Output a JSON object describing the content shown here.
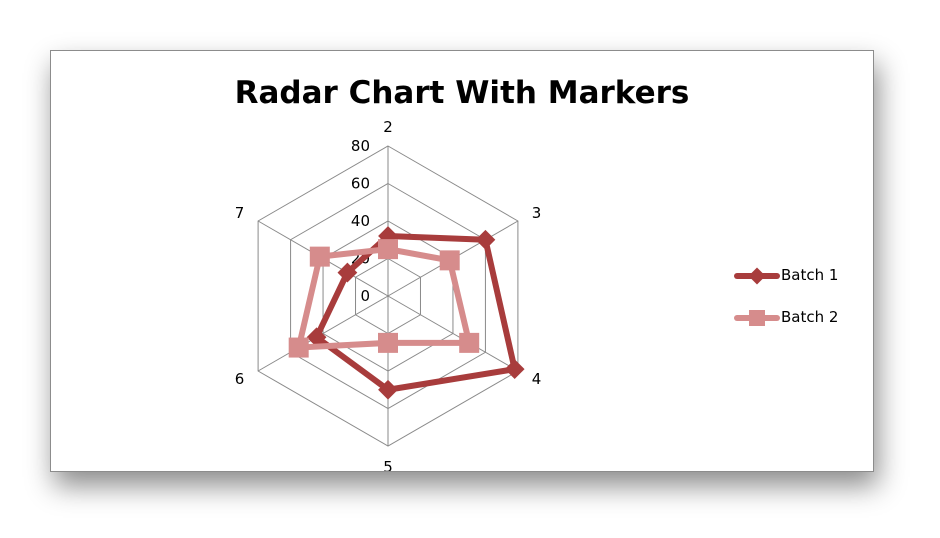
{
  "chart_data": {
    "type": "radar",
    "title": "Radar Chart With Markers",
    "categories": [
      "2",
      "3",
      "4",
      "5",
      "6",
      "7"
    ],
    "radial_ticks": [
      "0",
      "20",
      "40",
      "60",
      "80"
    ],
    "rlim": [
      0,
      80
    ],
    "grid": true,
    "legend_position": "right",
    "series": [
      {
        "name": "Batch 1",
        "values": [
          32,
          60,
          78,
          50,
          44,
          25
        ],
        "color": "#a83c3c",
        "marker": "diamond"
      },
      {
        "name": "Batch 2",
        "values": [
          25,
          38,
          50,
          25,
          55,
          42
        ],
        "color": "#d68c8c",
        "marker": "square"
      }
    ]
  }
}
